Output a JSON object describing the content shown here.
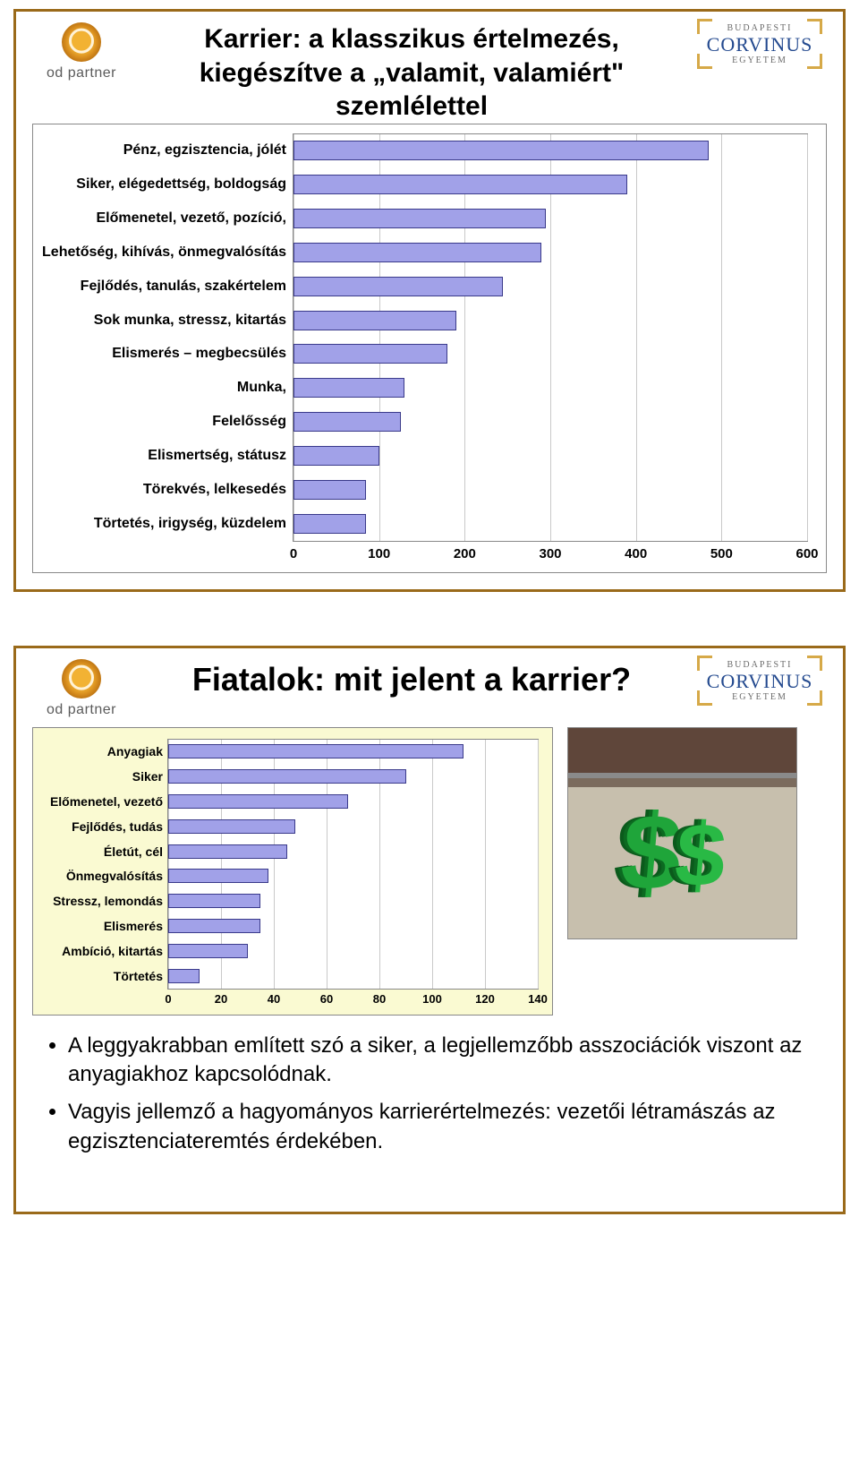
{
  "brand_left": "od partner",
  "brand_right_top": "BUDAPESTI",
  "brand_right_main": "CORVINUS",
  "brand_right_bottom": "EGYETEM",
  "slide1": {
    "title": "Karrier: a klasszikus értelmezés, kiegészítve a „valamit, valamiért\" szemlélettel",
    "chart": {
      "type": "bar",
      "xlim": [
        0,
        600
      ],
      "xtick_step": 100,
      "bar_fill": "#a1a1e8",
      "bar_border": "#3a3a8a",
      "grid_color": "#c9c9c9",
      "plot_bg": "#ffffff",
      "panel_border": "#888888",
      "label_fontsize": 16,
      "label_fontweight": "bold",
      "categories": [
        "Pénz, egzisztencia, jólét",
        "Siker, elégedettség, boldogság",
        "Előmenetel, vezető, pozíció,",
        "Lehetőség, kihívás, önmegvalósítás",
        "Fejlődés, tanulás, szakértelem",
        "Sok munka, stressz, kitartás",
        "Elismerés – megbecsülés",
        "Munka,",
        "Felelősség",
        "Elismertség, státusz",
        "Törekvés, lelkesedés",
        "Törtetés, irigység, küzdelem"
      ],
      "values": [
        485,
        390,
        295,
        290,
        245,
        190,
        180,
        130,
        125,
        100,
        85,
        85
      ]
    }
  },
  "slide2": {
    "title": "Fiatalok: mit jelent a karrier?",
    "chart": {
      "type": "bar",
      "xlim": [
        0,
        140
      ],
      "xtick_step": 20,
      "bar_fill": "#a1a1e8",
      "bar_border": "#3a3a8a",
      "grid_color": "#c9c9c9",
      "panel_bg": "#fafad2",
      "plot_bg": "#ffffff",
      "panel_border": "#888888",
      "label_fontsize": 14,
      "label_fontweight": "bold",
      "categories": [
        "Anyagiak",
        "Siker",
        "Előmenetel, vezető",
        "Fejlődés, tudás",
        "Életút, cél",
        "Önmegvalósítás",
        "Stressz, lemondás",
        "Elismerés",
        "Ambíció, kitartás",
        "Törtetés"
      ],
      "values": [
        112,
        90,
        68,
        48,
        45,
        38,
        35,
        35,
        30,
        12
      ]
    },
    "bullets": [
      "A leggyakrabban említett szó a siker, a legjellemzőbb asszociációk viszont az anyagiakhoz kapcsolódnak.",
      "Vagyis jellemző a hagyományos karrierértelmezés: vezetői létramászás az egzisztenciateremtés érdekében."
    ]
  }
}
